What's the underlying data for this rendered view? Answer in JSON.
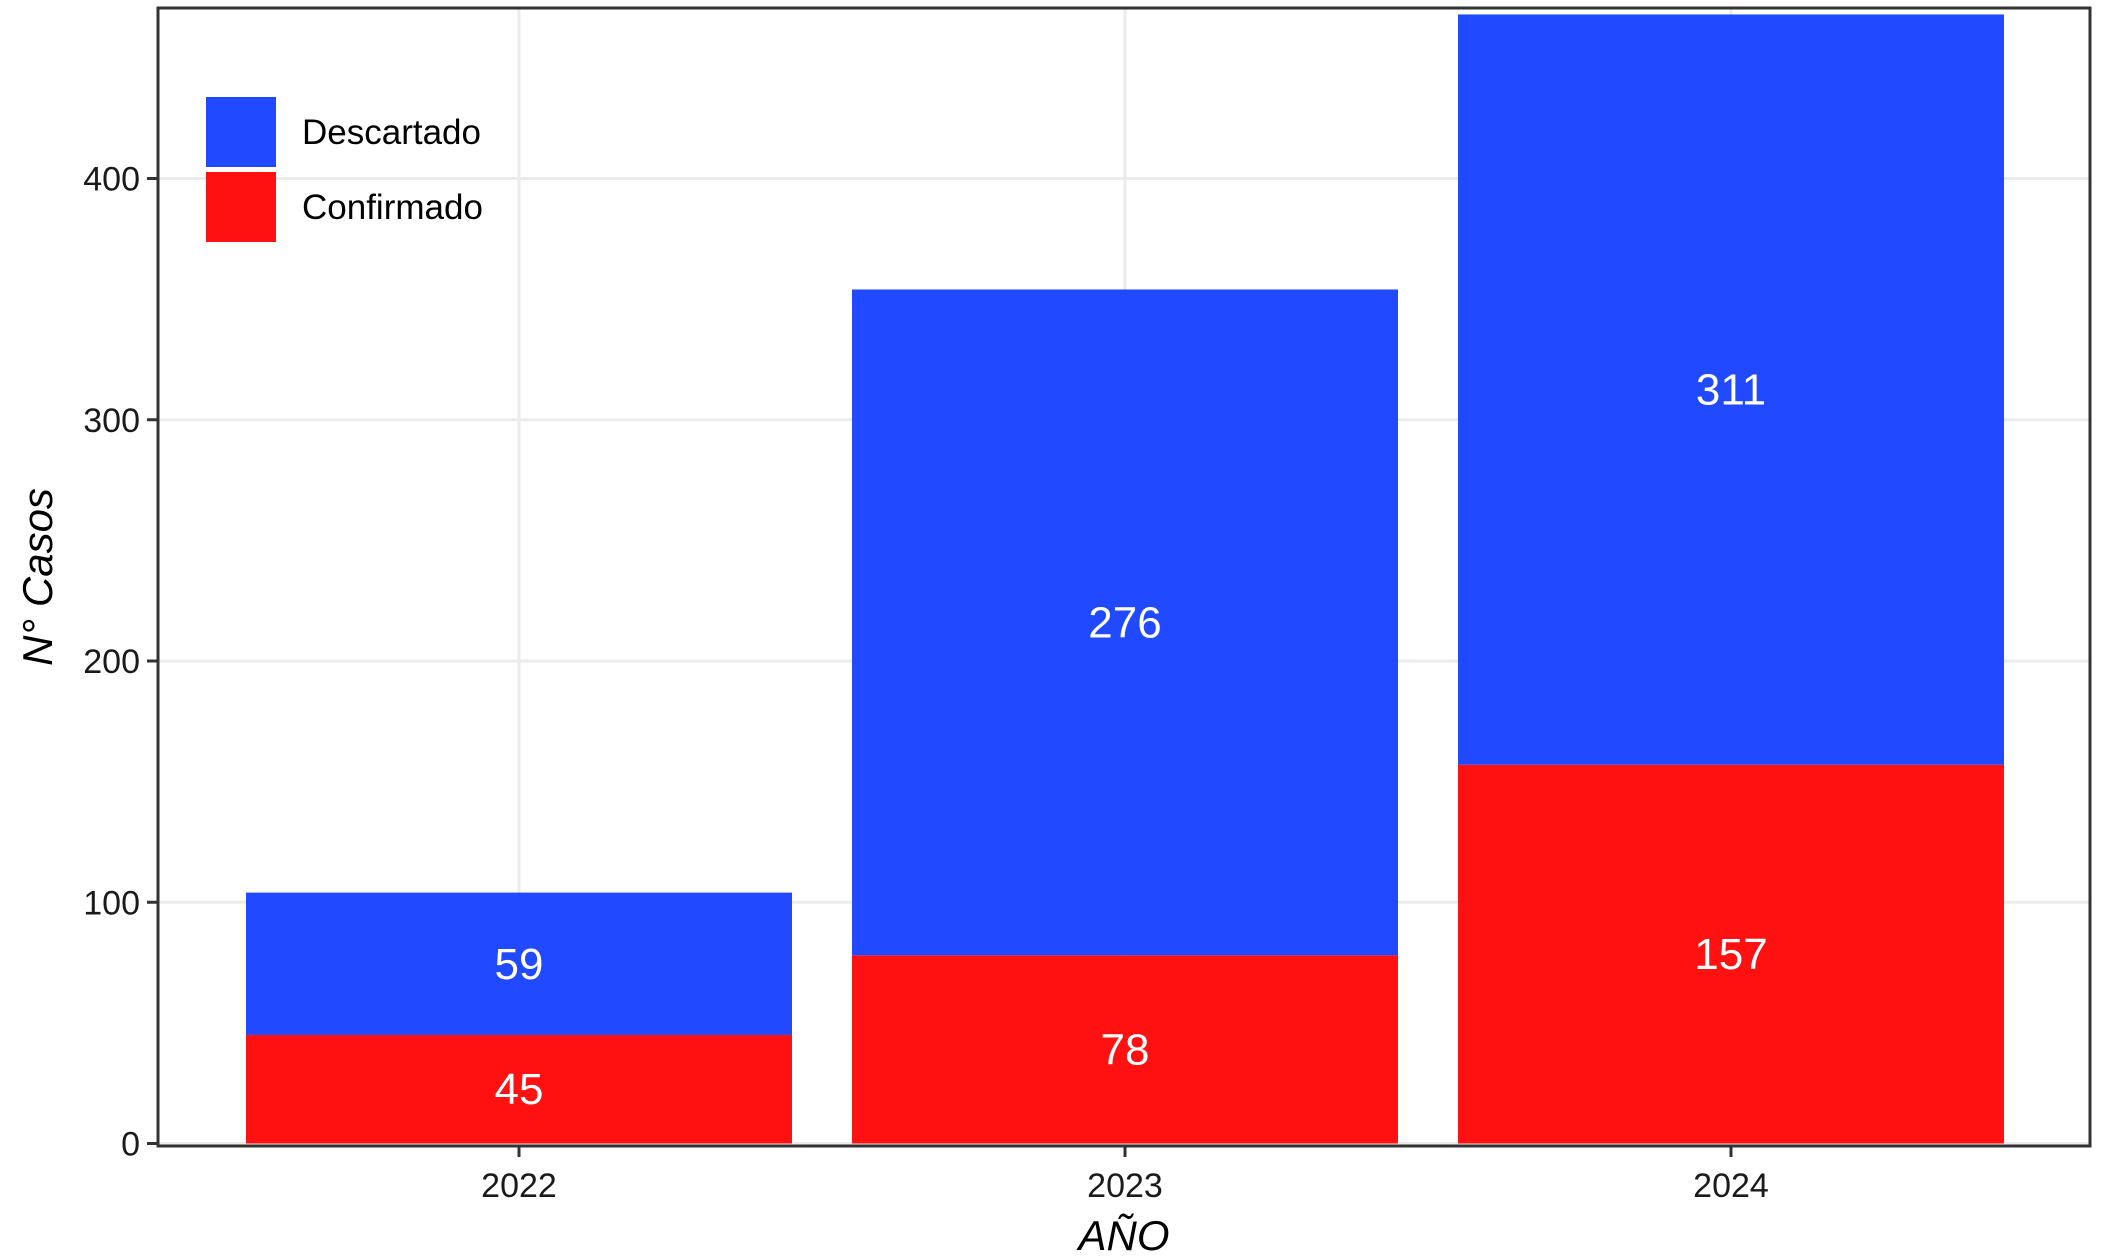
{
  "chart_data": {
    "type": "bar",
    "stacked": true,
    "categories": [
      "2022",
      "2023",
      "2024"
    ],
    "series": [
      {
        "name": "Confirmado",
        "values": [
          45,
          78,
          157
        ],
        "color": "#ff1111"
      },
      {
        "name": "Descartado",
        "values": [
          59,
          276,
          311
        ],
        "color": "#2149ff"
      }
    ],
    "xlabel": "AÑO",
    "ylabel": "N° Casos",
    "ylim": [
      0,
      470
    ],
    "yticks": [
      0,
      100,
      200,
      300,
      400
    ],
    "grid": true,
    "legend": {
      "position": "top-left",
      "entries": [
        "Descartado",
        "Confirmado"
      ]
    }
  }
}
